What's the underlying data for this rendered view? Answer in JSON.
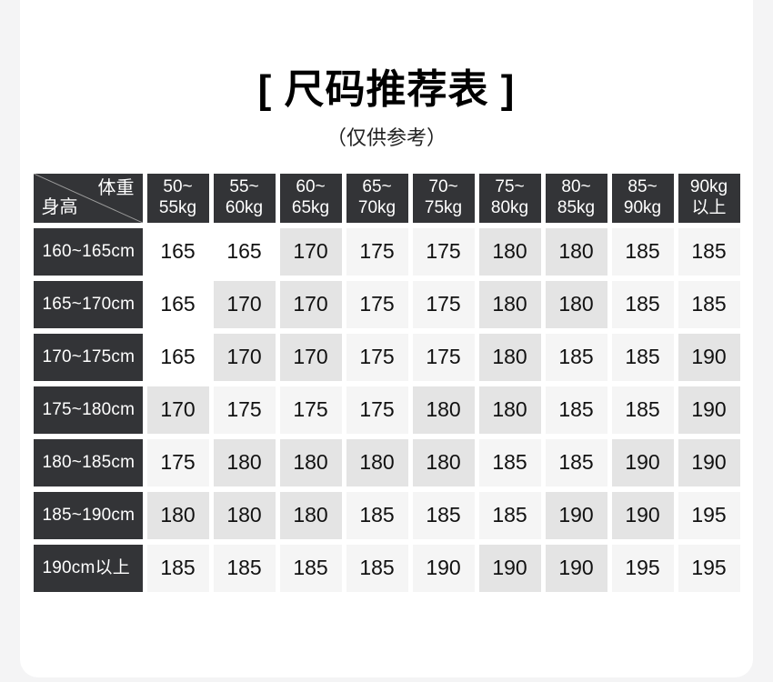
{
  "page": {
    "background": "#f4f4f5",
    "card_background": "#ffffff"
  },
  "header": {
    "title": "[ 尺码推荐表 ]",
    "subtitle": "（仅供参考）"
  },
  "size_table": {
    "corner": {
      "weight_label": "体重",
      "height_label": "身高"
    },
    "weight_columns": [
      {
        "line1": "50~",
        "line2": "55kg"
      },
      {
        "line1": "55~",
        "line2": "60kg"
      },
      {
        "line1": "60~",
        "line2": "65kg"
      },
      {
        "line1": "65~",
        "line2": "70kg"
      },
      {
        "line1": "70~",
        "line2": "75kg"
      },
      {
        "line1": "75~",
        "line2": "80kg"
      },
      {
        "line1": "80~",
        "line2": "85kg"
      },
      {
        "line1": "85~",
        "line2": "90kg"
      },
      {
        "line1": "90kg",
        "line2": "以上"
      }
    ],
    "rows": [
      {
        "height": "160~165cm",
        "sizes": [
          "165",
          "165",
          "170",
          "175",
          "175",
          "180",
          "180",
          "185",
          "185"
        ],
        "shades": [
          "white",
          "white",
          "gray",
          "light",
          "light",
          "gray",
          "gray",
          "light",
          "light"
        ]
      },
      {
        "height": "165~170cm",
        "sizes": [
          "165",
          "170",
          "170",
          "175",
          "175",
          "180",
          "180",
          "185",
          "185"
        ],
        "shades": [
          "white",
          "gray",
          "gray",
          "light",
          "light",
          "gray",
          "gray",
          "light",
          "light"
        ]
      },
      {
        "height": "170~175cm",
        "sizes": [
          "165",
          "170",
          "170",
          "175",
          "175",
          "180",
          "185",
          "185",
          "190"
        ],
        "shades": [
          "white",
          "gray",
          "gray",
          "light",
          "light",
          "gray",
          "light",
          "light",
          "gray"
        ]
      },
      {
        "height": "175~180cm",
        "sizes": [
          "170",
          "175",
          "175",
          "175",
          "180",
          "180",
          "185",
          "185",
          "190"
        ],
        "shades": [
          "gray",
          "light",
          "light",
          "light",
          "gray",
          "gray",
          "light",
          "light",
          "gray"
        ]
      },
      {
        "height": "180~185cm",
        "sizes": [
          "175",
          "180",
          "180",
          "180",
          "180",
          "185",
          "185",
          "190",
          "190"
        ],
        "shades": [
          "light",
          "gray",
          "gray",
          "gray",
          "gray",
          "light",
          "light",
          "gray",
          "gray"
        ]
      },
      {
        "height": "185~190cm",
        "sizes": [
          "180",
          "180",
          "180",
          "185",
          "185",
          "185",
          "190",
          "190",
          "195"
        ],
        "shades": [
          "gray",
          "gray",
          "gray",
          "light",
          "light",
          "light",
          "gray",
          "gray",
          "light"
        ]
      },
      {
        "height": "190cm以上",
        "sizes": [
          "185",
          "185",
          "185",
          "185",
          "190",
          "190",
          "190",
          "195",
          "195"
        ],
        "shades": [
          "light",
          "light",
          "light",
          "light",
          "light",
          "gray",
          "gray",
          "light",
          "light"
        ]
      }
    ],
    "colors": {
      "header_background": "#333437",
      "header_text": "#ffffff",
      "cell_text": "#111111",
      "shade_white": "#ffffff",
      "shade_light": "#f5f5f5",
      "shade_gray": "#e4e4e4",
      "diagonal_line": "#9c9c9c"
    }
  }
}
